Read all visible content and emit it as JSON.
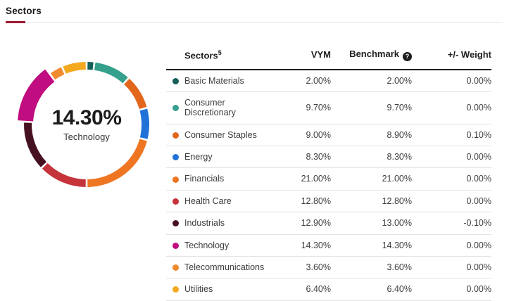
{
  "page": {
    "title": "Sectors",
    "accent_color": "#9e1b32"
  },
  "chart_data": {
    "type": "pie",
    "style": "donut",
    "title": "",
    "legend_position": "none",
    "center_label": {
      "value": "14.30%",
      "label": "Technology"
    },
    "highlighted_segment": "Technology",
    "categories": [
      "Basic Materials",
      "Consumer Discretionary",
      "Consumer Staples",
      "Energy",
      "Financials",
      "Health Care",
      "Industrials",
      "Technology",
      "Telecommunications",
      "Utilities"
    ],
    "values": [
      2.0,
      9.7,
      9.0,
      8.3,
      21.0,
      12.8,
      12.9,
      14.3,
      3.6,
      6.4
    ],
    "colors": [
      "#17605a",
      "#35a08c",
      "#e2671d",
      "#2172d8",
      "#ee7623",
      "#c5333b",
      "#461222",
      "#c00d7f",
      "#f08a2e",
      "#f3a81f"
    ],
    "segments": [
      {
        "name": "Basic Materials",
        "value": 2.0,
        "color": "#17605a",
        "highlighted": false
      },
      {
        "name": "Consumer Discretionary",
        "value": 9.7,
        "color": "#35a08c",
        "highlighted": false
      },
      {
        "name": "Consumer Staples",
        "value": 9.0,
        "color": "#e2671d",
        "highlighted": false
      },
      {
        "name": "Energy",
        "value": 8.3,
        "color": "#2172d8",
        "highlighted": false
      },
      {
        "name": "Financials",
        "value": 21.0,
        "color": "#ee7623",
        "highlighted": false
      },
      {
        "name": "Health Care",
        "value": 12.8,
        "color": "#c5333b",
        "highlighted": false
      },
      {
        "name": "Industrials",
        "value": 12.9,
        "color": "#461222",
        "highlighted": false
      },
      {
        "name": "Technology",
        "value": 14.3,
        "color": "#c00d7f",
        "highlighted": true
      },
      {
        "name": "Telecommunications",
        "value": 3.6,
        "color": "#f08a2e",
        "highlighted": false
      },
      {
        "name": "Utilities",
        "value": 6.4,
        "color": "#f3a81f",
        "highlighted": false
      }
    ]
  },
  "table": {
    "columns": {
      "sectors": "Sectors",
      "sectors_footnote": "5",
      "vym": "VYM",
      "benchmark": "Benchmark",
      "weight": "+/- Weight"
    },
    "help_icon": "?",
    "rows": [
      {
        "name": "Basic Materials",
        "color": "#17605a",
        "vym": "2.00%",
        "benchmark": "2.00%",
        "weight": "0.00%"
      },
      {
        "name": "Consumer Discretionary",
        "color": "#35a08c",
        "vym": "9.70%",
        "benchmark": "9.70%",
        "weight": "0.00%"
      },
      {
        "name": "Consumer Staples",
        "color": "#e2671d",
        "vym": "9.00%",
        "benchmark": "8.90%",
        "weight": "0.10%"
      },
      {
        "name": "Energy",
        "color": "#2172d8",
        "vym": "8.30%",
        "benchmark": "8.30%",
        "weight": "0.00%"
      },
      {
        "name": "Financials",
        "color": "#ee7623",
        "vym": "21.00%",
        "benchmark": "21.00%",
        "weight": "0.00%"
      },
      {
        "name": "Health Care",
        "color": "#c5333b",
        "vym": "12.80%",
        "benchmark": "12.80%",
        "weight": "0.00%"
      },
      {
        "name": "Industrials",
        "color": "#461222",
        "vym": "12.90%",
        "benchmark": "13.00%",
        "weight": "-0.10%"
      },
      {
        "name": "Technology",
        "color": "#c00d7f",
        "vym": "14.30%",
        "benchmark": "14.30%",
        "weight": "0.00%"
      },
      {
        "name": "Telecommunications",
        "color": "#f08a2e",
        "vym": "3.60%",
        "benchmark": "3.60%",
        "weight": "0.00%"
      },
      {
        "name": "Utilities",
        "color": "#f3a81f",
        "vym": "6.40%",
        "benchmark": "6.40%",
        "weight": "0.00%"
      }
    ]
  }
}
